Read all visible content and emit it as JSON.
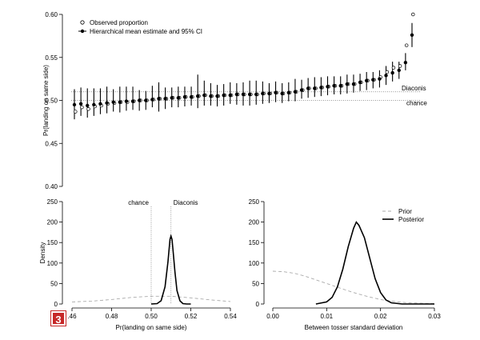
{
  "badge": "3",
  "chart_data": [
    {
      "type": "scatter",
      "title": "",
      "xlabel": "",
      "ylabel": "Pr(landing on same side)",
      "ylim": [
        0.4,
        0.6
      ],
      "yticks": [
        "0.40",
        "0.45",
        "0.50",
        "0.55",
        "0.60"
      ],
      "grid": false,
      "legend_position": "top-left",
      "legend": [
        "Observed proportion",
        "Hierarchical mean estimate and 95% CI"
      ],
      "reference_lines": [
        {
          "label": "Diaconis",
          "y": 0.51
        },
        {
          "label": "chance",
          "y": 0.5
        }
      ],
      "series": [
        {
          "name": "Observed proportion",
          "values": [
            0.487,
            0.492,
            0.49,
            0.493,
            0.494,
            0.496,
            0.497,
            0.498,
            0.498,
            0.499,
            0.5,
            0.5,
            0.501,
            0.502,
            0.502,
            0.503,
            0.503,
            0.504,
            0.504,
            0.505,
            0.506,
            0.505,
            0.505,
            0.506,
            0.506,
            0.507,
            0.507,
            0.507,
            0.507,
            0.508,
            0.508,
            0.509,
            0.508,
            0.509,
            0.51,
            0.512,
            0.514,
            0.514,
            0.515,
            0.516,
            0.517,
            0.517,
            0.519,
            0.519,
            0.521,
            0.523,
            0.524,
            0.527,
            0.533,
            0.538,
            0.54,
            0.564,
            0.6
          ]
        },
        {
          "name": "Hierarchical mean estimate and 95% CI",
          "values": [
            0.495,
            0.496,
            0.494,
            0.495,
            0.496,
            0.497,
            0.498,
            0.498,
            0.499,
            0.499,
            0.5,
            0.5,
            0.501,
            0.502,
            0.502,
            0.503,
            0.503,
            0.504,
            0.504,
            0.505,
            0.506,
            0.505,
            0.505,
            0.506,
            0.506,
            0.507,
            0.507,
            0.507,
            0.507,
            0.508,
            0.508,
            0.509,
            0.508,
            0.509,
            0.51,
            0.512,
            0.514,
            0.514,
            0.515,
            0.516,
            0.517,
            0.517,
            0.519,
            0.519,
            0.521,
            0.523,
            0.524,
            0.525,
            0.529,
            0.532,
            0.535,
            0.544,
            0.576
          ],
          "lower": [
            0.478,
            0.482,
            0.48,
            0.482,
            0.484,
            0.485,
            0.487,
            0.486,
            0.488,
            0.489,
            0.488,
            0.489,
            0.492,
            0.487,
            0.49,
            0.492,
            0.492,
            0.493,
            0.494,
            0.491,
            0.494,
            0.494,
            0.493,
            0.494,
            0.496,
            0.495,
            0.494,
            0.494,
            0.495,
            0.496,
            0.497,
            0.498,
            0.497,
            0.499,
            0.499,
            0.502,
            0.503,
            0.504,
            0.505,
            0.506,
            0.507,
            0.507,
            0.508,
            0.509,
            0.511,
            0.512,
            0.514,
            0.515,
            0.518,
            0.522,
            0.525,
            0.535,
            0.562
          ],
          "upper": [
            0.513,
            0.515,
            0.514,
            0.514,
            0.514,
            0.516,
            0.513,
            0.516,
            0.516,
            0.516,
            0.512,
            0.511,
            0.517,
            0.521,
            0.515,
            0.515,
            0.516,
            0.516,
            0.516,
            0.53,
            0.523,
            0.52,
            0.518,
            0.519,
            0.521,
            0.52,
            0.521,
            0.523,
            0.523,
            0.522,
            0.52,
            0.522,
            0.52,
            0.521,
            0.525,
            0.524,
            0.526,
            0.527,
            0.527,
            0.528,
            0.528,
            0.528,
            0.53,
            0.53,
            0.531,
            0.533,
            0.533,
            0.535,
            0.54,
            0.545,
            0.545,
            0.555,
            0.59
          ]
        }
      ]
    },
    {
      "type": "line",
      "title": "",
      "xlabel": "Pr(landing on same side)",
      "ylabel": "Density",
      "xlim": [
        0.46,
        0.54
      ],
      "ylim": [
        0,
        250
      ],
      "xticks": [
        ".46",
        "0.48",
        "0.50",
        "0.52",
        "0.54"
      ],
      "yticks": [
        "0",
        "50",
        "100",
        "150",
        "200",
        "250"
      ],
      "grid": false,
      "reference_lines": [
        {
          "label": "chance",
          "x": 0.5
        },
        {
          "label": "Diaconis",
          "x": 0.51
        }
      ],
      "series": [
        {
          "name": "Prior",
          "style": "dashed",
          "x": [
            0.46,
            0.47,
            0.48,
            0.49,
            0.5,
            0.51,
            0.52,
            0.53,
            0.54
          ],
          "values": [
            5,
            7,
            11,
            16,
            19,
            19,
            15,
            10,
            6
          ]
        },
        {
          "name": "Posterior",
          "style": "solid",
          "x": [
            0.5,
            0.503,
            0.505,
            0.507,
            0.5085,
            0.509,
            0.5095,
            0.51,
            0.5105,
            0.511,
            0.512,
            0.513,
            0.5145,
            0.516,
            0.518,
            0.52
          ],
          "values": [
            0,
            1,
            8,
            42,
            104,
            132,
            158,
            166,
            158,
            133,
            78,
            33,
            8,
            1,
            0,
            0
          ]
        }
      ]
    },
    {
      "type": "line",
      "title": "",
      "xlabel": "Between tosser standard deviation",
      "ylabel": "",
      "xlim": [
        0.0,
        0.03
      ],
      "ylim": [
        0,
        250
      ],
      "xticks": [
        "0.00",
        "0.01",
        "0.02",
        "0.03"
      ],
      "yticks": [
        "0",
        "50",
        "100",
        "150",
        "200",
        "250"
      ],
      "grid": false,
      "legend_position": "top-right",
      "legend": [
        "Prior",
        "Posterior"
      ],
      "series": [
        {
          "name": "Prior",
          "style": "dashed",
          "x": [
            0.0,
            0.002,
            0.004,
            0.006,
            0.008,
            0.01,
            0.012,
            0.014,
            0.016,
            0.018,
            0.02,
            0.022,
            0.025,
            0.03
          ],
          "values": [
            80,
            79,
            75,
            68,
            59,
            50,
            41,
            32,
            24,
            17,
            11,
            7,
            3,
            1
          ]
        },
        {
          "name": "Posterior",
          "style": "solid",
          "x": [
            0.008,
            0.01,
            0.011,
            0.012,
            0.013,
            0.014,
            0.015,
            0.0155,
            0.016,
            0.017,
            0.018,
            0.019,
            0.02,
            0.021,
            0.022,
            0.024,
            0.03
          ],
          "values": [
            0,
            5,
            16,
            42,
            85,
            140,
            185,
            200,
            192,
            162,
            112,
            62,
            28,
            10,
            3,
            0,
            0
          ]
        }
      ]
    }
  ]
}
